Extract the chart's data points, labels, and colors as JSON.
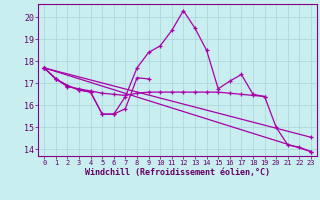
{
  "background_color": "#c8eef0",
  "grid_color": "#b0d8dc",
  "line_color": "#aa00aa",
  "xlabel": "Windchill (Refroidissement éolien,°C)",
  "xlim": [
    -0.5,
    23.5
  ],
  "ylim": [
    13.7,
    20.6
  ],
  "yticks": [
    14,
    15,
    16,
    17,
    18,
    19,
    20
  ],
  "xticks": [
    0,
    1,
    2,
    3,
    4,
    5,
    6,
    7,
    8,
    9,
    10,
    11,
    12,
    13,
    14,
    15,
    16,
    17,
    18,
    19,
    20,
    21,
    22,
    23
  ],
  "lines": [
    {
      "x": [
        0,
        1,
        2,
        3,
        4,
        5,
        6,
        7,
        8,
        9,
        10,
        11,
        12,
        13,
        14,
        15,
        16,
        17,
        18,
        19,
        20,
        21,
        22,
        23
      ],
      "y": [
        17.7,
        17.2,
        16.9,
        16.7,
        16.6,
        15.6,
        15.6,
        16.4,
        17.7,
        18.4,
        18.7,
        19.4,
        20.3,
        19.5,
        18.5,
        16.75,
        17.1,
        17.4,
        16.5,
        16.4,
        15.0,
        14.2,
        14.1,
        13.9
      ]
    },
    {
      "x": [
        0,
        1,
        2,
        3,
        4,
        5,
        6,
        7,
        8,
        9
      ],
      "y": [
        17.7,
        17.2,
        16.9,
        16.7,
        16.6,
        15.6,
        15.6,
        15.85,
        17.25,
        17.2
      ]
    },
    {
      "x": [
        0,
        1,
        2,
        3,
        4,
        5,
        6,
        7,
        8,
        9,
        10,
        11,
        12,
        13,
        14,
        15,
        16,
        17,
        18,
        19
      ],
      "y": [
        17.7,
        17.2,
        16.85,
        16.75,
        16.65,
        16.55,
        16.5,
        16.45,
        16.55,
        16.6,
        16.6,
        16.6,
        16.6,
        16.6,
        16.6,
        16.6,
        16.55,
        16.5,
        16.45,
        16.4
      ]
    },
    {
      "x": [
        0,
        23
      ],
      "y": [
        17.7,
        13.9
      ]
    },
    {
      "x": [
        0,
        23
      ],
      "y": [
        17.7,
        14.55
      ]
    }
  ]
}
